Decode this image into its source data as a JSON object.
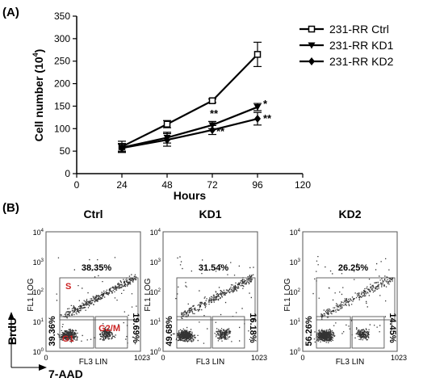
{
  "panel_a": {
    "label": "(A)",
    "significance": {
      "kd1_72": "**",
      "kd2_72": "**",
      "kd1_96": "*",
      "kd2_96": "**"
    }
  },
  "panel_b": {
    "label": "(B)",
    "corner_y_label": "BrdU",
    "corner_x_label": "7-AAD",
    "gate_labels": {
      "s": "S",
      "g1": "G1",
      "g2m": "G2/M"
    },
    "plots": [
      {
        "title": "Ctrl",
        "s_pct": "38.35%",
        "g1_pct": "39.36%",
        "g2m_pct": "19.69%"
      },
      {
        "title": "KD1",
        "s_pct": "31.54%",
        "g1_pct": "49.68%",
        "g2m_pct": "16.18%"
      },
      {
        "title": "KD2",
        "s_pct": "26.25%",
        "g1_pct": "56.26%",
        "g2m_pct": "14.45%"
      }
    ],
    "y_axis_label": "FL1 LOG",
    "x_axis_label": "FL3 LIN",
    "x_ticks": [
      "0",
      "1023"
    ],
    "y_ticks": [
      {
        "base": "10",
        "exp": "0"
      },
      {
        "base": "10",
        "exp": "1"
      },
      {
        "base": "10",
        "exp": "2"
      },
      {
        "base": "10",
        "exp": "3"
      },
      {
        "base": "10",
        "exp": "4"
      }
    ]
  },
  "chart_data": {
    "type": "line",
    "title": "",
    "xlabel": "Hours",
    "ylabel": "Cell number (10",
    "ylabel_sup": "4",
    "ylabel_close": ")",
    "x": [
      24,
      48,
      72,
      96
    ],
    "xlim": [
      0,
      120
    ],
    "ylim": [
      0,
      350
    ],
    "xticks": [
      0,
      24,
      48,
      72,
      96,
      120
    ],
    "yticks": [
      0,
      50,
      100,
      150,
      200,
      250,
      300,
      350
    ],
    "legend_position": "top-right",
    "series": [
      {
        "name": "231-RR Ctrl",
        "marker": "square",
        "values": [
          60,
          110,
          162,
          265
        ],
        "errors": [
          12,
          8,
          4,
          27
        ]
      },
      {
        "name": "231-RR KD1",
        "marker": "triangle-down",
        "values": [
          58,
          80,
          108,
          148
        ],
        "errors": [
          8,
          12,
          8,
          8
        ]
      },
      {
        "name": "231-RR KD2",
        "marker": "diamond",
        "values": [
          57,
          75,
          97,
          122
        ],
        "errors": [
          10,
          14,
          10,
          14
        ]
      }
    ]
  }
}
